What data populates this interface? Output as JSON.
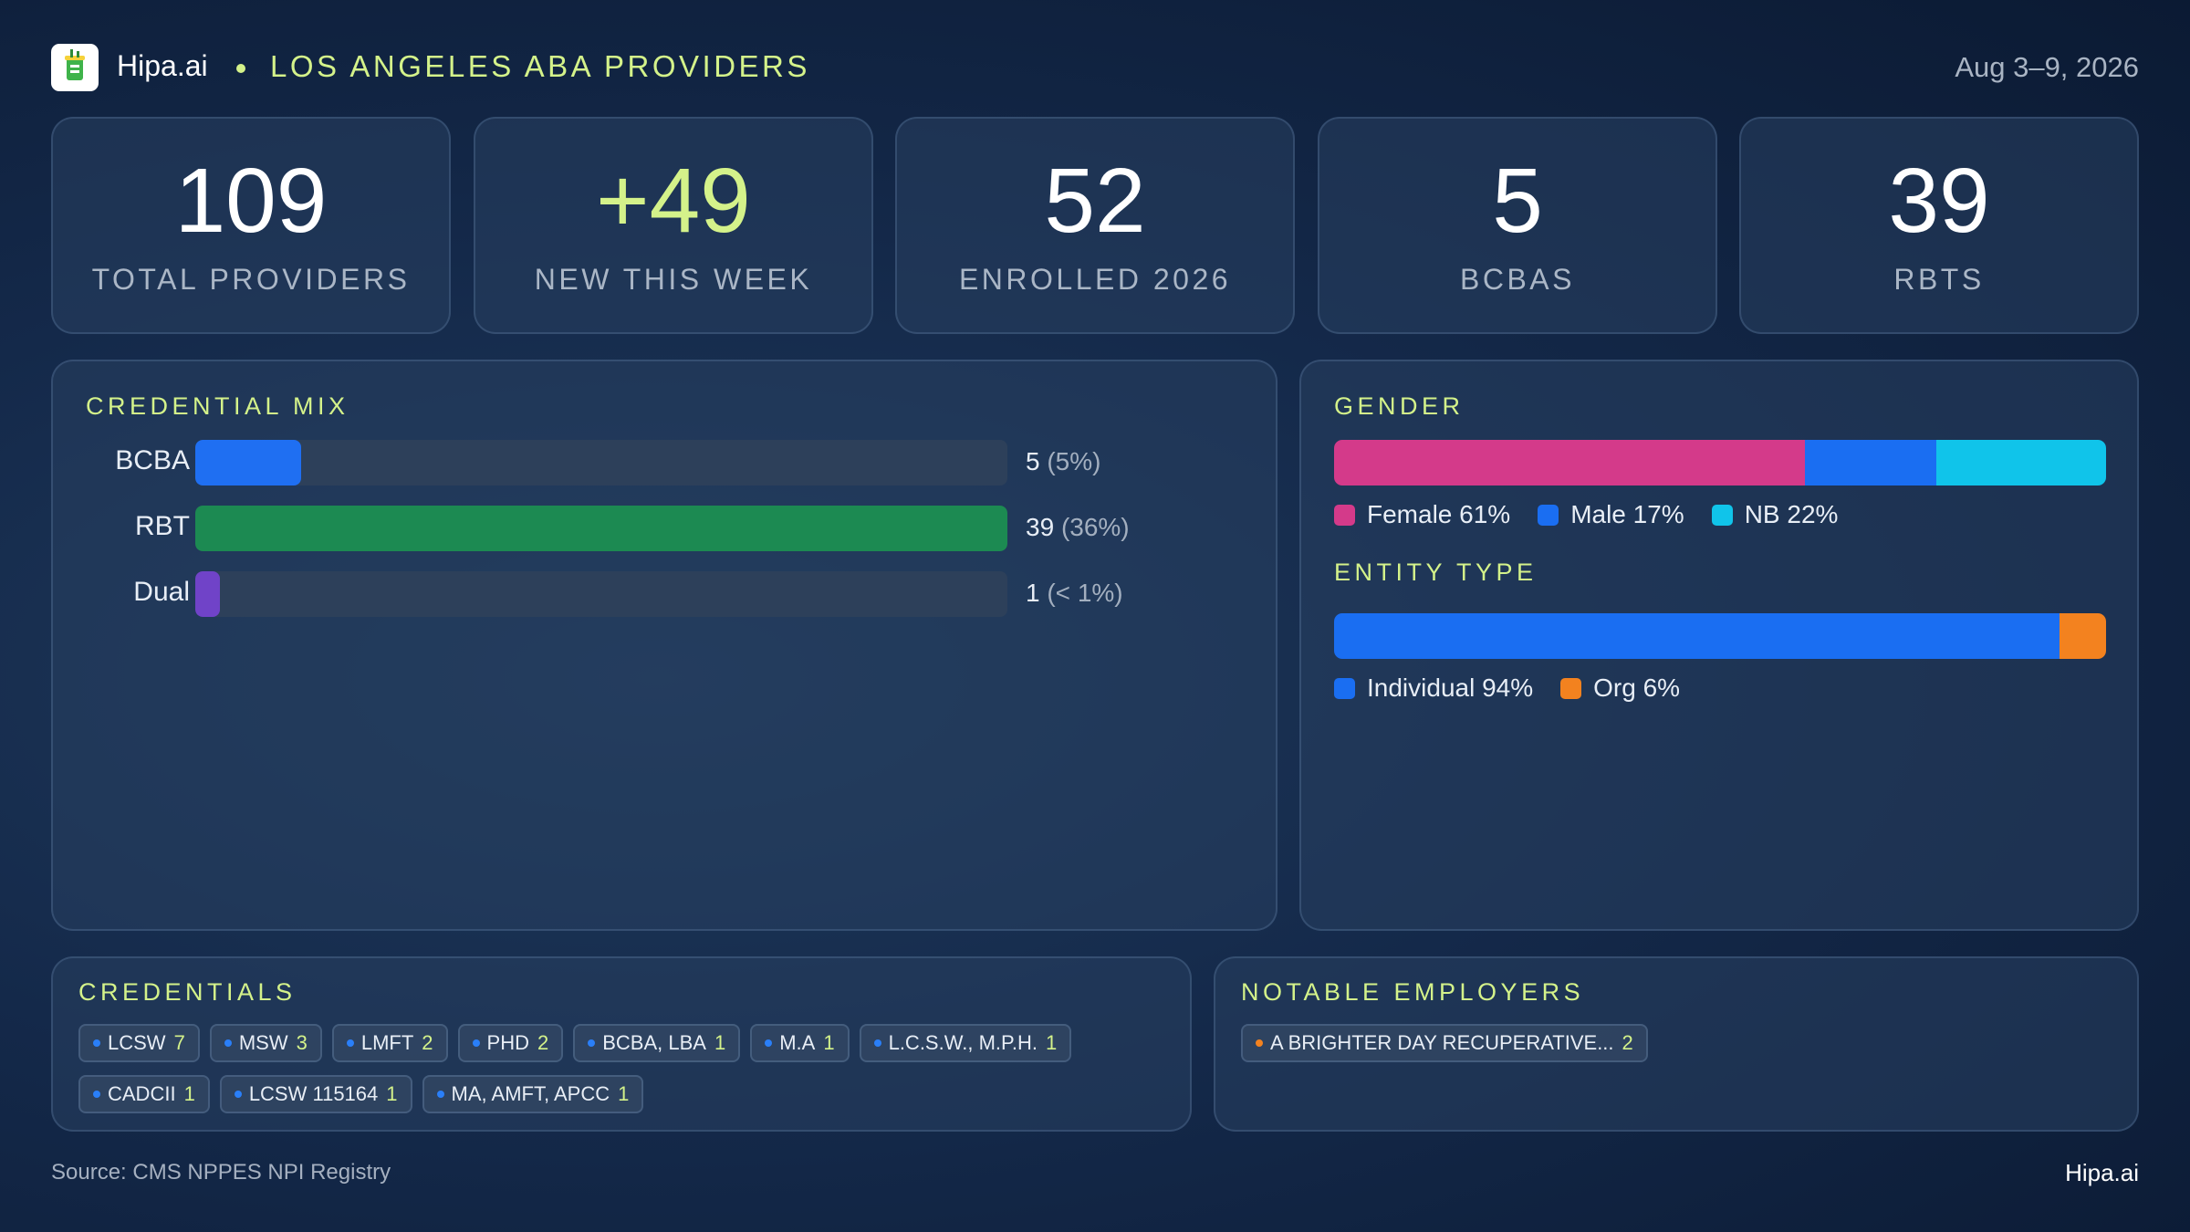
{
  "header": {
    "brand": "Hipa.ai",
    "title": "LOS ANGELES ABA PROVIDERS",
    "date_range": "Aug 3–9, 2026"
  },
  "stats": [
    {
      "value": "109",
      "label": "TOTAL PROVIDERS"
    },
    {
      "value": "+49",
      "label": "NEW THIS WEEK"
    },
    {
      "value": "52",
      "label": "ENROLLED 2026"
    },
    {
      "value": "5",
      "label": "BCBAS"
    },
    {
      "value": "39",
      "label": "RBTS"
    }
  ],
  "credential_mix": {
    "title": "CREDENTIAL MIX",
    "rows": [
      {
        "label": "BCBA",
        "count": "5",
        "pct": "(5%)",
        "share": 0.13,
        "color": "#1f6ff2"
      },
      {
        "label": "RBT",
        "count": "39",
        "pct": "(36%)",
        "share": 1.0,
        "color": "#1c8a52"
      },
      {
        "label": "Dual",
        "count": "1",
        "pct": "(< 1%)",
        "share": 0.03,
        "color": "#7043c8"
      }
    ]
  },
  "gender": {
    "title": "GENDER",
    "segments": [
      {
        "label": "Female 61%",
        "share": 61,
        "color": "#d43a8a"
      },
      {
        "label": "Male 17%",
        "share": 17,
        "color": "#1a6ef2"
      },
      {
        "label": "NB 22%",
        "share": 22,
        "color": "#10c4ea"
      }
    ]
  },
  "entity_type": {
    "title": "ENTITY TYPE",
    "segments": [
      {
        "label": "Individual 94%",
        "share": 94,
        "color": "#1a6ef2"
      },
      {
        "label": "Org 6%",
        "share": 6,
        "color": "#f3821f"
      }
    ]
  },
  "credentials": {
    "title": "CREDENTIALS",
    "chips": [
      {
        "name": "LCSW",
        "count": "7"
      },
      {
        "name": "MSW",
        "count": "3"
      },
      {
        "name": "LMFT",
        "count": "2"
      },
      {
        "name": "PHD",
        "count": "2"
      },
      {
        "name": "BCBA, LBA",
        "count": "1"
      },
      {
        "name": "M.A",
        "count": "1"
      },
      {
        "name": "L.C.S.W., M.P.H.",
        "count": "1"
      },
      {
        "name": "CADCII",
        "count": "1"
      },
      {
        "name": "LCSW 115164",
        "count": "1"
      },
      {
        "name": "MA, AMFT, APCC",
        "count": "1"
      }
    ]
  },
  "employers": {
    "title": "NOTABLE EMPLOYERS",
    "chips": [
      {
        "name": "A BRIGHTER DAY RECUPERATIVE...",
        "count": "2"
      }
    ]
  },
  "footer": {
    "source": "Source: CMS NPPES NPI Registry",
    "brand": "Hipa.ai"
  },
  "colors": {
    "accent": "#d4f28a",
    "background": "#14294a"
  }
}
